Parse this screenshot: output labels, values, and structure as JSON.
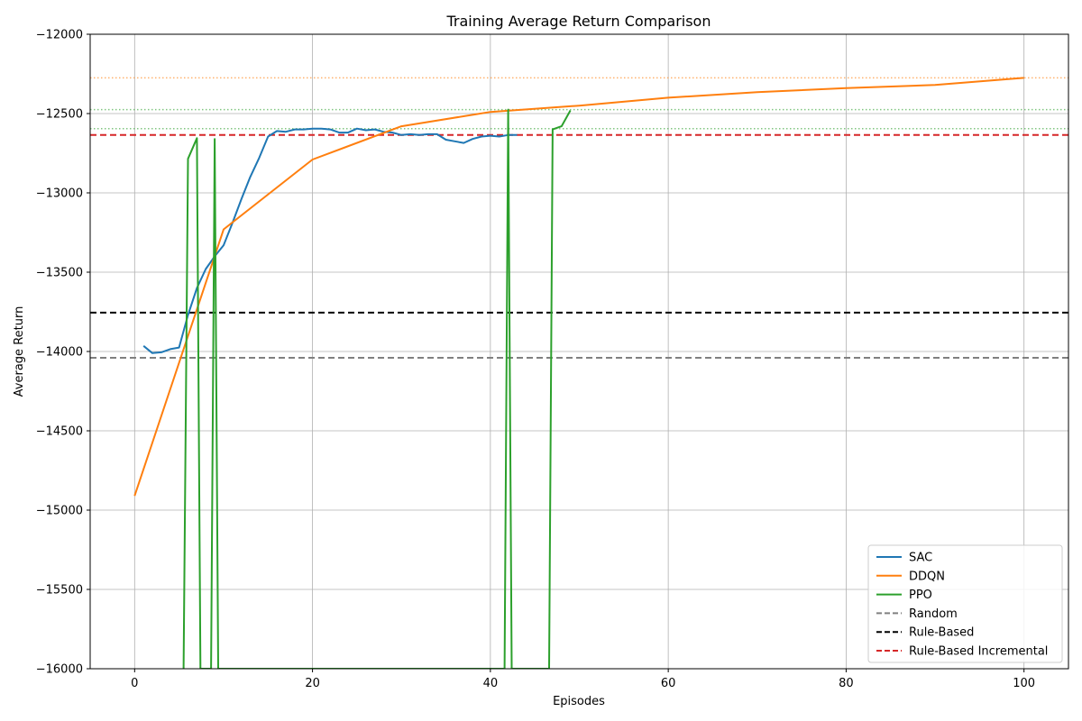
{
  "chart_data": {
    "type": "line",
    "title": "Training Average Return Comparison",
    "xlabel": "Episodes",
    "ylabel": "Average Return",
    "xlim": [
      -5,
      105
    ],
    "ylim": [
      -16000,
      -12000
    ],
    "xticks": [
      0,
      20,
      40,
      60,
      80,
      100
    ],
    "yticks": [
      -16000,
      -15500,
      -15000,
      -14500,
      -14000,
      -13500,
      -13000,
      -12500,
      -12000
    ],
    "xtick_labels": [
      "0",
      "20",
      "40",
      "60",
      "80",
      "100"
    ],
    "ytick_labels": [
      "−16000",
      "−15500",
      "−15000",
      "−14500",
      "−14000",
      "−13500",
      "−13000",
      "−12500",
      "−12000"
    ],
    "grid": true,
    "legend_position": "lower-right",
    "series": [
      {
        "name": "SAC",
        "color": "#1f77b4",
        "x": [
          1,
          2,
          3,
          4,
          5,
          6,
          7,
          8,
          9,
          10,
          11,
          12,
          13,
          14,
          15,
          16,
          17,
          18,
          19,
          20,
          21,
          22,
          23,
          24,
          25,
          26,
          27,
          28,
          29,
          30,
          31,
          32,
          33,
          34,
          35,
          36,
          37,
          38,
          39,
          40,
          41,
          42,
          43
        ],
        "y": [
          -13965,
          -14010,
          -14005,
          -13985,
          -13975,
          -13770,
          -13600,
          -13480,
          -13400,
          -13330,
          -13190,
          -13040,
          -12900,
          -12780,
          -12645,
          -12610,
          -12615,
          -12600,
          -12600,
          -12595,
          -12595,
          -12600,
          -12620,
          -12620,
          -12595,
          -12605,
          -12600,
          -12615,
          -12620,
          -12635,
          -12630,
          -12635,
          -12630,
          -12630,
          -12665,
          -12675,
          -12685,
          -12660,
          -12645,
          -12640,
          -12645,
          -12635,
          -12635
        ]
      },
      {
        "name": "DDQN",
        "color": "#ff7f0e",
        "x": [
          0,
          10,
          20,
          30,
          40,
          50,
          60,
          70,
          80,
          90,
          100
        ],
        "y": [
          -14910,
          -13230,
          -12790,
          -12580,
          -12490,
          -12450,
          -12400,
          -12365,
          -12340,
          -12320,
          -12275
        ]
      },
      {
        "name": "PPO",
        "color": "#2ca02c",
        "x": [
          5.5,
          6,
          7,
          7.4,
          8.6,
          9,
          9.4,
          41.6,
          42,
          42.4,
          46.6,
          47,
          48,
          49
        ],
        "y": [
          -16000,
          -12785,
          -12655,
          -16000,
          -16000,
          -12660,
          -16000,
          -16000,
          -12475,
          -16000,
          -16000,
          -12600,
          -12580,
          -12480
        ]
      }
    ],
    "reference_lines": [
      {
        "name": "Random",
        "y": -14040,
        "color": "#808080",
        "style": "dashed"
      },
      {
        "name": "Rule-Based",
        "y": -13755,
        "color": "#000000",
        "style": "dashed"
      },
      {
        "name": "Rule-Based Incremental",
        "y": -12635,
        "color": "#d62728",
        "style": "dashed"
      }
    ],
    "best_lines": [
      {
        "y": -12275,
        "color": "#ff7f0e",
        "style": "dotted"
      },
      {
        "y": -12475,
        "color": "#2ca02c",
        "style": "dotted"
      },
      {
        "y": -12595,
        "color": "#2ca02c",
        "style": "dotted"
      }
    ],
    "legend": [
      "SAC",
      "DDQN",
      "PPO",
      "Random",
      "Rule-Based",
      "Rule-Based Incremental"
    ]
  }
}
